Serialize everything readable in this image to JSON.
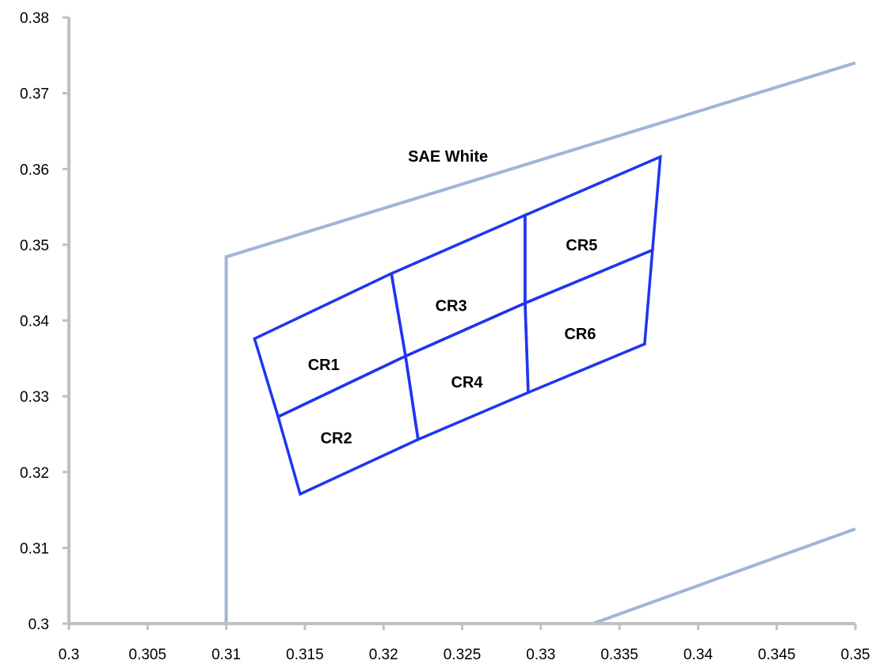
{
  "chart_data": {
    "type": "scatter",
    "title": "",
    "xlabel": "",
    "ylabel": "",
    "xlim": [
      0.3,
      0.35
    ],
    "ylim": [
      0.3,
      0.38
    ],
    "x_ticks": [
      "0.3",
      "0.305",
      "0.31",
      "0.315",
      "0.32",
      "0.325",
      "0.33",
      "0.335",
      "0.34",
      "0.345",
      "0.35"
    ],
    "y_ticks": [
      "0.3",
      "0.31",
      "0.32",
      "0.33",
      "0.34",
      "0.35",
      "0.36",
      "0.37",
      "0.38"
    ],
    "grid": false,
    "legend": "none",
    "colors": {
      "boundary": "#9fb6d6",
      "regions": "#1f35f0",
      "axis": "#c0c0c0"
    },
    "boundary_lines": [
      {
        "points": [
          [
            0.31,
            0.3
          ],
          [
            0.31,
            0.3484
          ],
          [
            0.35,
            0.374
          ]
        ]
      },
      {
        "points": [
          [
            0.3333,
            0.3
          ],
          [
            0.35,
            0.3125
          ]
        ]
      }
    ],
    "regions": [
      {
        "label": "CR1",
        "points": [
          [
            0.3118,
            0.3376
          ],
          [
            0.3205,
            0.3462
          ],
          [
            0.3214,
            0.3353
          ],
          [
            0.3133,
            0.3273
          ]
        ]
      },
      {
        "label": "CR2",
        "points": [
          [
            0.3133,
            0.3273
          ],
          [
            0.3214,
            0.3353
          ],
          [
            0.3222,
            0.3243
          ],
          [
            0.3147,
            0.3171
          ]
        ]
      },
      {
        "label": "CR3",
        "points": [
          [
            0.3205,
            0.3462
          ],
          [
            0.329,
            0.3539
          ],
          [
            0.329,
            0.3423
          ],
          [
            0.3214,
            0.3353
          ]
        ]
      },
      {
        "label": "CR4",
        "points": [
          [
            0.3214,
            0.3353
          ],
          [
            0.329,
            0.3423
          ],
          [
            0.3292,
            0.3305
          ],
          [
            0.3222,
            0.3243
          ]
        ]
      },
      {
        "label": "CR5",
        "points": [
          [
            0.329,
            0.3539
          ],
          [
            0.3376,
            0.3616
          ],
          [
            0.3371,
            0.3493
          ],
          [
            0.329,
            0.3423
          ]
        ]
      },
      {
        "label": "CR6",
        "points": [
          [
            0.329,
            0.3423
          ],
          [
            0.3371,
            0.3493
          ],
          [
            0.3366,
            0.3369
          ],
          [
            0.3292,
            0.3305
          ]
        ]
      }
    ],
    "region_label_positions": [
      {
        "label": "CR1",
        "x": 0.3162,
        "y": 0.3342
      },
      {
        "label": "CR2",
        "x": 0.317,
        "y": 0.3245
      },
      {
        "label": "CR3",
        "x": 0.3243,
        "y": 0.342
      },
      {
        "label": "CR4",
        "x": 0.3253,
        "y": 0.3319
      },
      {
        "label": "CR5",
        "x": 0.3326,
        "y": 0.35
      },
      {
        "label": "CR6",
        "x": 0.3325,
        "y": 0.3383
      }
    ],
    "annotations": [
      {
        "text": "SAE White",
        "x": 0.3241,
        "y": 0.3617
      }
    ]
  }
}
